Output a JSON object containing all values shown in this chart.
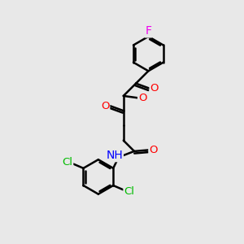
{
  "background_color": "#e8e8e8",
  "bond_color": "#000000",
  "atom_colors": {
    "O": "#ff0000",
    "N": "#0000ff",
    "Cl": "#00bb00",
    "F": "#ee00ee",
    "H": "#000000",
    "C": "#000000"
  },
  "bond_width": 1.8,
  "font_size": 9.5,
  "figsize": [
    3.0,
    3.0
  ],
  "dpi": 100
}
